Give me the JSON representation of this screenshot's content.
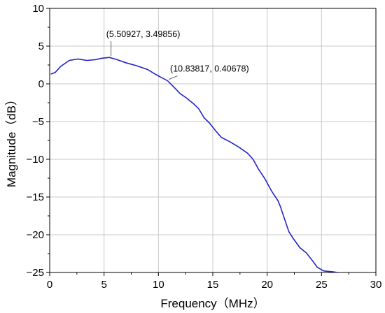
{
  "chart_data": {
    "type": "line",
    "title": "",
    "xlabel": "Frequency（MHz）",
    "ylabel": "Magnitude（dB）",
    "xlim": [
      0,
      30
    ],
    "ylim": [
      -25,
      10
    ],
    "x_ticks": [
      0,
      5,
      10,
      15,
      20,
      25,
      30
    ],
    "y_ticks": [
      10,
      5,
      0,
      -5,
      -10,
      -15,
      -20,
      -25
    ],
    "grid": true,
    "legend": "none",
    "line_color": "#2323c8",
    "series": [
      {
        "x": [
          0.1,
          0.5,
          1.0,
          1.8,
          2.6,
          3.4,
          4.2,
          4.8,
          5.5,
          6.2,
          7.0,
          8.0,
          9.0,
          9.8,
          10.2,
          10.84,
          11.4,
          12.0,
          12.6,
          13.2,
          13.7,
          14.2,
          14.7,
          15.3,
          15.8,
          16.6,
          17.4,
          18.2,
          18.7,
          19.2,
          19.8,
          20.4,
          21.0,
          21.2,
          21.5,
          22.0,
          22.4,
          23.0,
          23.6,
          24.2,
          24.6,
          25.2,
          26.0,
          26.5
        ],
        "y": [
          1.3,
          1.5,
          2.3,
          3.1,
          3.3,
          3.1,
          3.2,
          3.4,
          3.49856,
          3.2,
          2.8,
          2.4,
          1.9,
          1.2,
          0.9,
          0.40678,
          -0.4,
          -1.3,
          -1.9,
          -2.6,
          -3.3,
          -4.5,
          -5.2,
          -6.3,
          -7.1,
          -7.7,
          -8.4,
          -9.2,
          -10.0,
          -11.3,
          -12.6,
          -14.2,
          -15.5,
          -16.2,
          -17.5,
          -19.6,
          -20.5,
          -21.7,
          -22.4,
          -23.5,
          -24.3,
          -24.8,
          -24.9,
          -25.0
        ]
      }
    ],
    "annotations": [
      {
        "text": "(5.50927, 3.49856)",
        "x": 5.50927,
        "y": 3.49856,
        "label_x": 8.6,
        "label_y": 6.2
      },
      {
        "text": "(10.83817, 0.40678)",
        "x": 10.83817,
        "y": 0.40678,
        "label_x": 14.7,
        "label_y": 1.6
      }
    ]
  }
}
